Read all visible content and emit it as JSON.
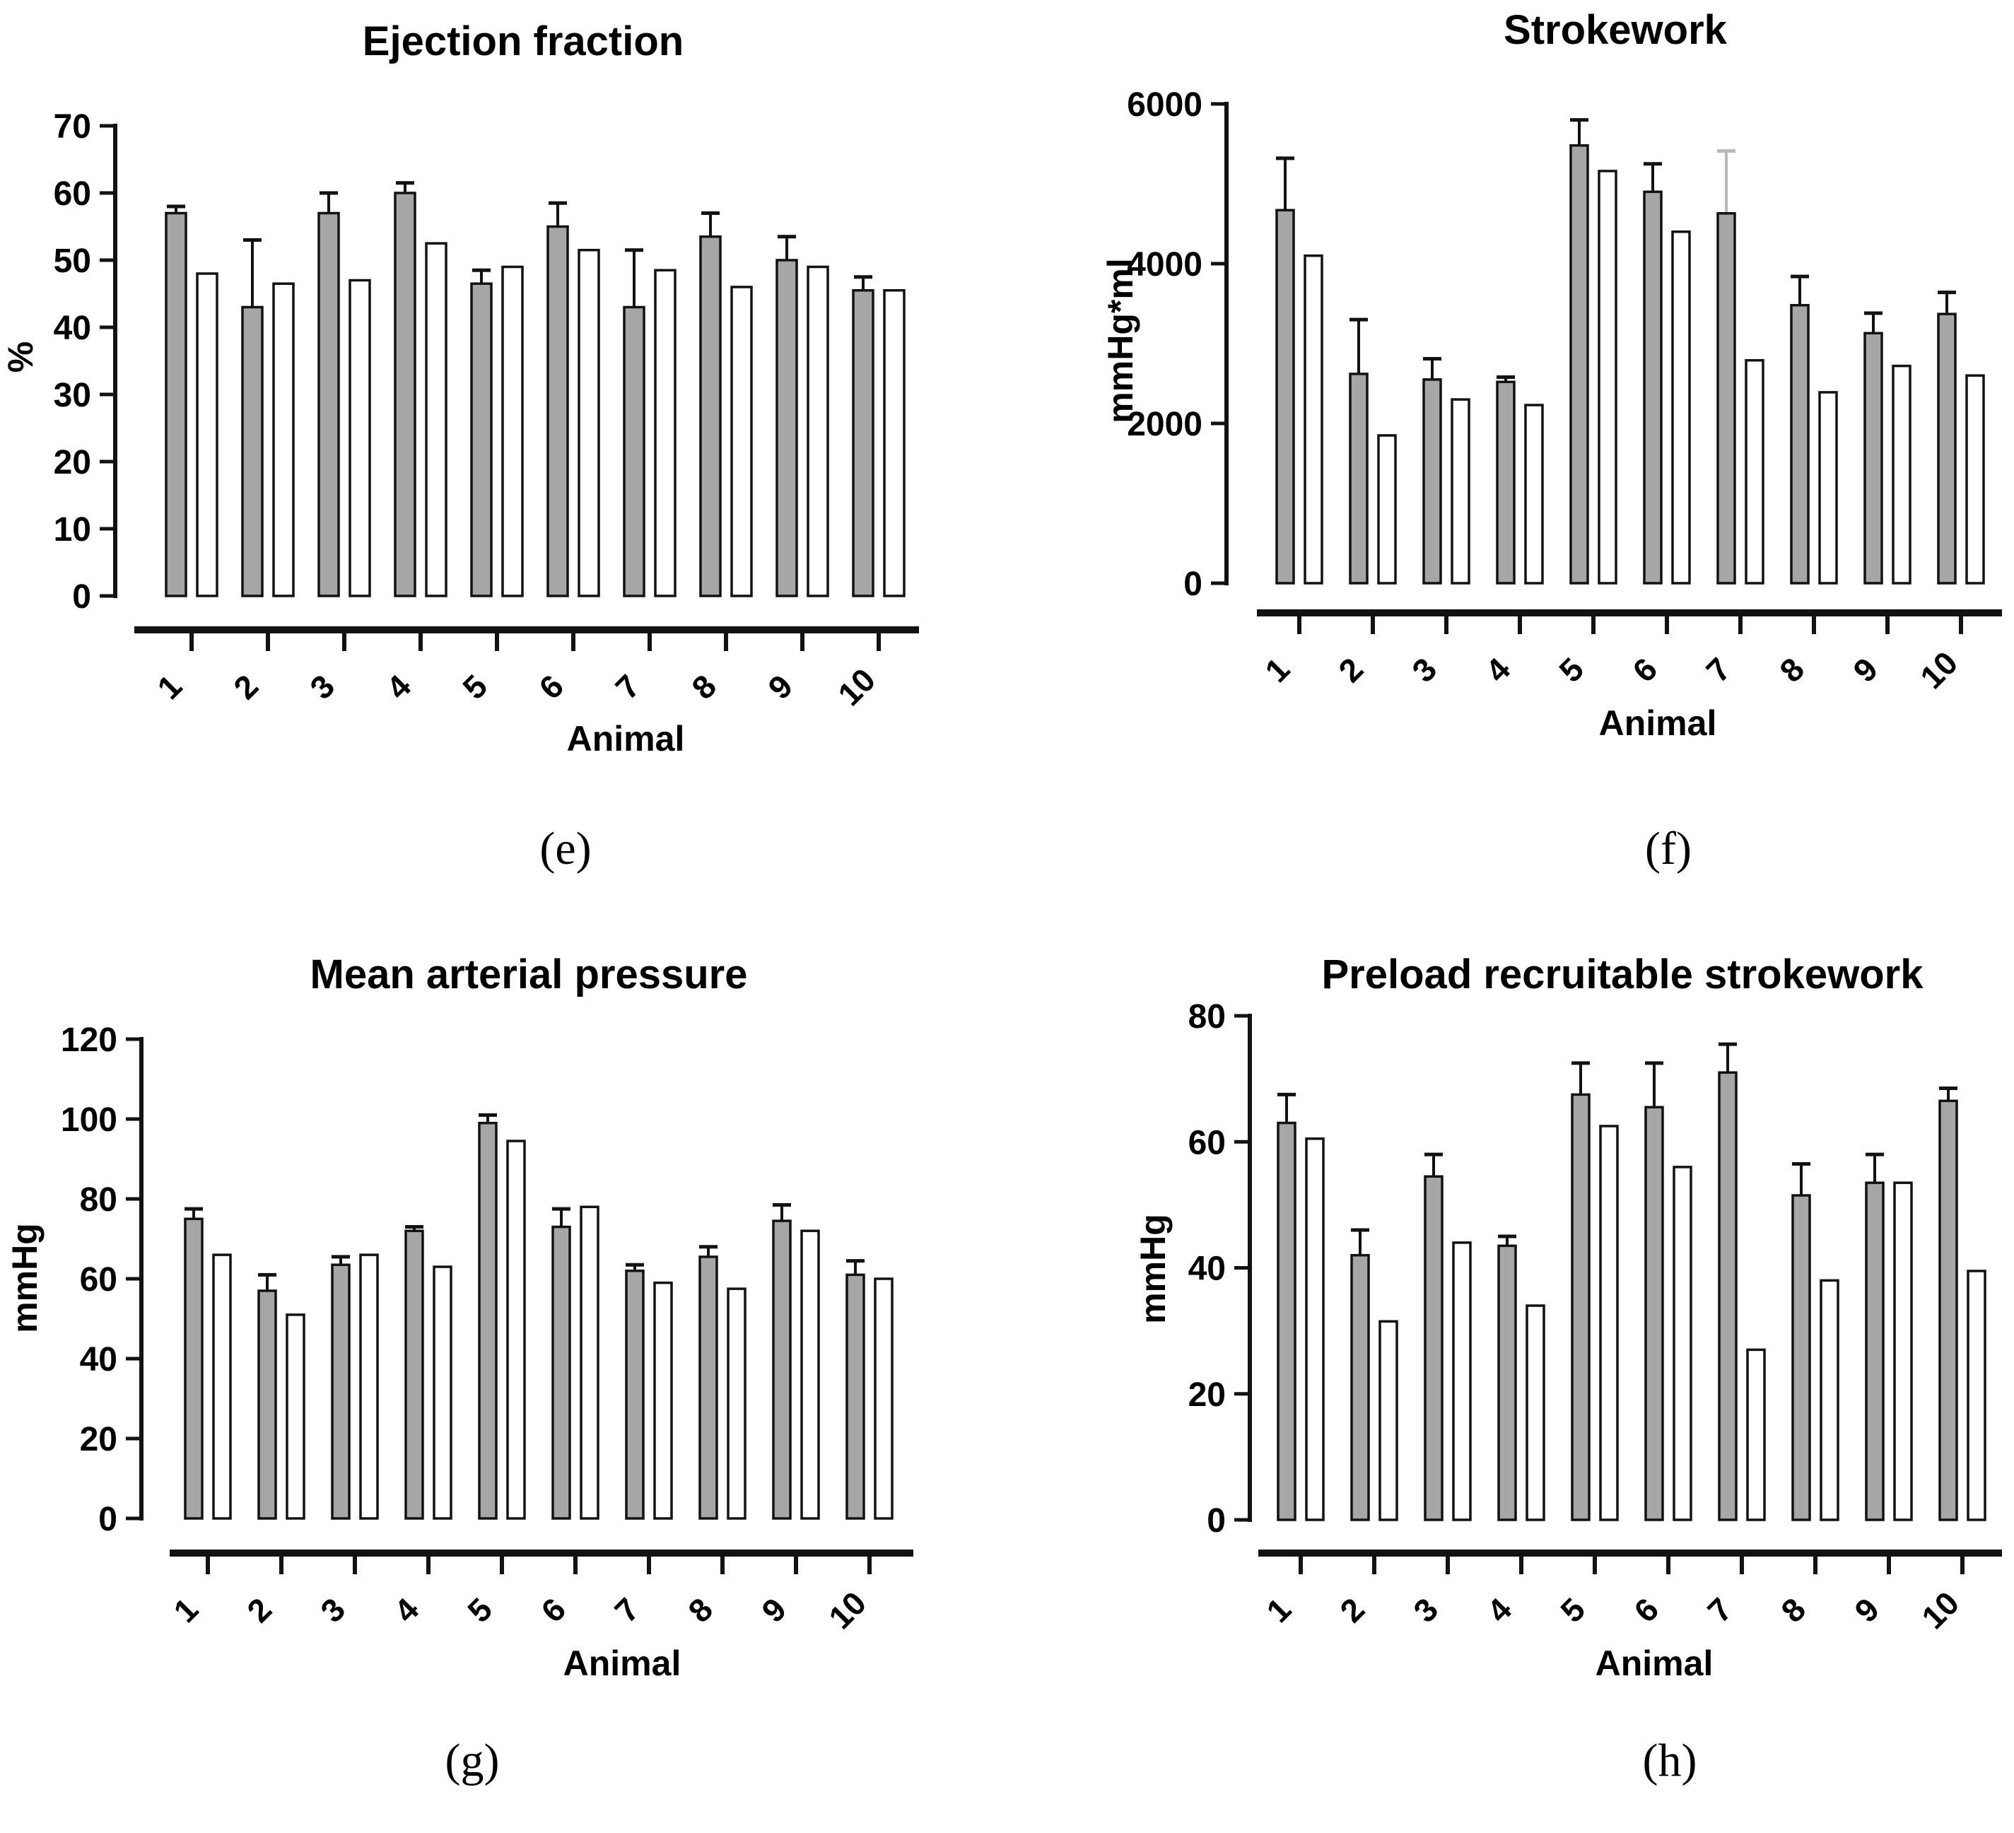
{
  "figure": {
    "colors": {
      "background": "#ffffff",
      "bar_gray": "#a6a6a6",
      "bar_white": "#ffffff",
      "outline": "#121212",
      "error_bar": "#121212",
      "error_bar_light": "#b9b9b9",
      "text": "#000000"
    }
  },
  "chart_data": [
    {
      "id": "e",
      "type": "bar",
      "title": "Ejection fraction",
      "ylabel": "%",
      "xlabel": "Animal",
      "caption": "(e)",
      "ylim": [
        0,
        70
      ],
      "ytick_step": 10,
      "grid": false,
      "legend_position": "none",
      "categories": [
        "1",
        "2",
        "3",
        "4",
        "5",
        "6",
        "7",
        "8",
        "9",
        "10"
      ],
      "series": [
        {
          "name": "gray",
          "fill": "bar_gray",
          "values": [
            57,
            43,
            57,
            60,
            46.5,
            55,
            43,
            53.5,
            50,
            45.5
          ],
          "errors_up": [
            1,
            10,
            3,
            1.5,
            2,
            3.5,
            8.5,
            3.5,
            3.5,
            2
          ]
        },
        {
          "name": "white",
          "fill": "bar_white",
          "values": [
            48,
            46.5,
            47,
            52.5,
            49,
            51.5,
            48.5,
            46,
            49,
            45.5
          ],
          "errors_up": null
        }
      ]
    },
    {
      "id": "f",
      "type": "bar",
      "title": "Strokework",
      "ylabel": "mmHg*ml",
      "xlabel": "Animal",
      "caption": "(f)",
      "ylim": [
        0,
        6000
      ],
      "ytick_step": 2000,
      "grid": false,
      "legend_position": "none",
      "categories": [
        "1",
        "2",
        "3",
        "4",
        "5",
        "6",
        "7",
        "8",
        "9",
        "10"
      ],
      "series": [
        {
          "name": "gray",
          "fill": "bar_gray",
          "values": [
            4670,
            2620,
            2550,
            2520,
            5480,
            4900,
            4630,
            3480,
            3130,
            3370
          ],
          "errors_up": [
            650,
            680,
            260,
            60,
            320,
            350,
            780,
            360,
            250,
            270
          ],
          "error_color_overrides": {
            "6": "error_bar_light"
          }
        },
        {
          "name": "white",
          "fill": "bar_white",
          "values": [
            4100,
            1850,
            2300,
            2230,
            5160,
            4400,
            2790,
            2390,
            2720,
            2600
          ],
          "errors_up": null
        }
      ]
    },
    {
      "id": "g",
      "type": "bar",
      "title": "Mean arterial pressure",
      "ylabel": "mmHg",
      "xlabel": "Animal",
      "caption": "(g)",
      "ylim": [
        0,
        120
      ],
      "ytick_step": 20,
      "grid": false,
      "legend_position": "none",
      "categories": [
        "1",
        "2",
        "3",
        "4",
        "5",
        "6",
        "7",
        "8",
        "9",
        "10"
      ],
      "series": [
        {
          "name": "gray",
          "fill": "bar_gray",
          "values": [
            75,
            57,
            63.5,
            72,
            99,
            73,
            62,
            65.5,
            74.5,
            61
          ],
          "errors_up": [
            2.5,
            4,
            2,
            1,
            2,
            4.5,
            1.5,
            2.5,
            4,
            3.5
          ]
        },
        {
          "name": "white",
          "fill": "bar_white",
          "values": [
            66,
            51,
            66,
            63,
            94.5,
            78,
            59,
            57.5,
            72,
            60
          ],
          "errors_up": null
        }
      ]
    },
    {
      "id": "h",
      "type": "bar",
      "title": "Preload recruitable strokework",
      "ylabel": "mmHg",
      "xlabel": "Animal",
      "caption": "(h)",
      "ylim": [
        0,
        80
      ],
      "ytick_step": 20,
      "grid": false,
      "legend_position": "none",
      "categories": [
        "1",
        "2",
        "3",
        "4",
        "5",
        "6",
        "7",
        "8",
        "9",
        "10"
      ],
      "series": [
        {
          "name": "gray",
          "fill": "bar_gray",
          "values": [
            63,
            42,
            54.5,
            43.5,
            67.5,
            65.5,
            71,
            51.5,
            53.5,
            66.5
          ],
          "errors_up": [
            4.5,
            4,
            3.5,
            1.5,
            5,
            7,
            4.5,
            5,
            4.5,
            2
          ]
        },
        {
          "name": "white",
          "fill": "bar_white",
          "values": [
            60.5,
            31.5,
            44,
            34,
            62.5,
            56,
            27,
            38,
            53.5,
            39.5
          ],
          "errors_up": null
        }
      ]
    }
  ]
}
